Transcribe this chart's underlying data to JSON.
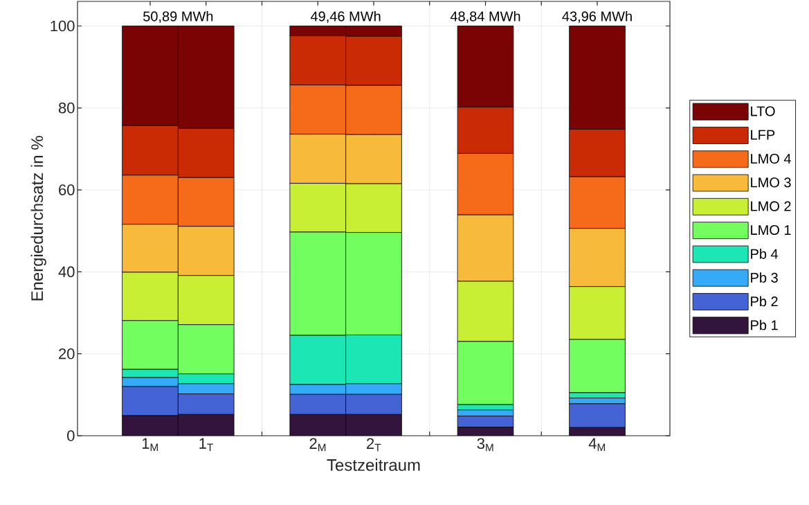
{
  "chart_data": {
    "type": "bar",
    "stacked": true,
    "xlabel": "Testzeitraum",
    "ylabel": "Energiedurchsatz in %",
    "categories": [
      "1$_{M}$",
      "1$_{T}$",
      null,
      "2$_{M}$",
      "2$_{T}$",
      null,
      "3$_{M}$",
      null,
      "4$_{M}$"
    ],
    "series": [
      {
        "name": "Pb 1",
        "color": "#33143c",
        "values": [
          4.9,
          5.2,
          null,
          5.2,
          5.2,
          null,
          2.1,
          null,
          2.0
        ]
      },
      {
        "name": "Pb 2",
        "color": "#4464d6",
        "values": [
          7.1,
          5.0,
          null,
          4.9,
          4.9,
          null,
          2.7,
          null,
          5.8
        ]
      },
      {
        "name": "Pb 3",
        "color": "#35aaf8",
        "values": [
          2.2,
          2.5,
          null,
          2.4,
          2.6,
          null,
          1.5,
          null,
          1.4
        ]
      },
      {
        "name": "Pb 4",
        "color": "#1ce6b4",
        "values": [
          2.0,
          2.4,
          null,
          12.0,
          11.9,
          null,
          1.3,
          null,
          1.3
        ]
      },
      {
        "name": "LMO 1",
        "color": "#72fe5e",
        "values": [
          11.9,
          12.0,
          null,
          25.2,
          25.0,
          null,
          15.4,
          null,
          13.0
        ]
      },
      {
        "name": "LMO 2",
        "color": "#c8ef34",
        "values": [
          11.8,
          12.0,
          null,
          11.9,
          11.9,
          null,
          14.7,
          null,
          12.9
        ]
      },
      {
        "name": "LMO 3",
        "color": "#f8ba3a",
        "values": [
          11.7,
          12.0,
          null,
          12.0,
          12.0,
          null,
          16.2,
          null,
          14.2
        ]
      },
      {
        "name": "LMO 4",
        "color": "#f66b1a",
        "values": [
          12.0,
          11.9,
          null,
          12.0,
          12.0,
          null,
          15.0,
          null,
          12.6
        ]
      },
      {
        "name": "LFP",
        "color": "#ca2a04",
        "values": [
          12.1,
          12.0,
          null,
          12.0,
          12.0,
          null,
          11.3,
          null,
          11.6
        ]
      },
      {
        "name": "LTO",
        "color": "#7a0403",
        "values": [
          24.3,
          25.0,
          null,
          2.4,
          2.5,
          null,
          19.8,
          null,
          25.2
        ]
      }
    ],
    "ylim": [
      0,
      106
    ],
    "yticks": [
      0,
      20,
      40,
      60,
      80,
      100
    ],
    "grid": true,
    "legend": "right",
    "annotations": [
      "50,89 MWh",
      "49,46 MWh",
      "48,84 MWh",
      "43,96 MWh"
    ]
  }
}
